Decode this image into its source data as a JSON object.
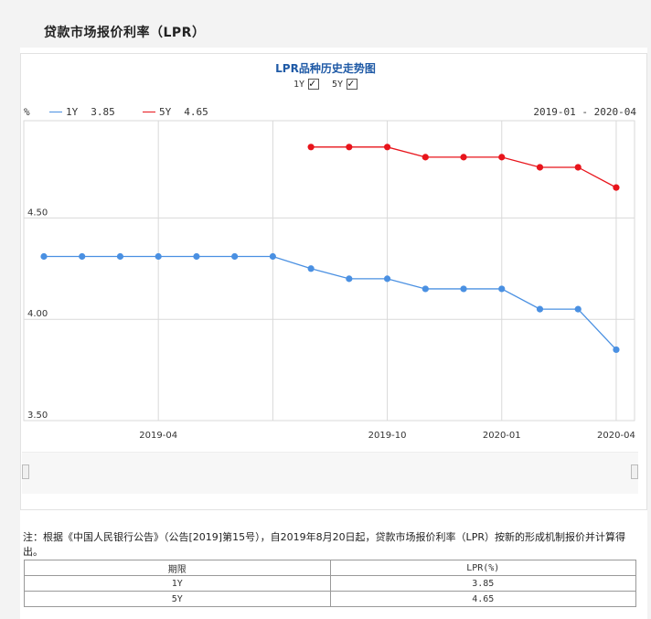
{
  "page": {
    "title": "贷款市场报价利率（LPR）"
  },
  "chart_title": "LPR品种历史走势图",
  "toggles": [
    {
      "label": "1Y",
      "checked": true
    },
    {
      "label": "5Y",
      "checked": true
    }
  ],
  "legend": {
    "unit": "%",
    "items": [
      {
        "name": "1Y",
        "value": "3.85",
        "color": "#4a90e2"
      },
      {
        "name": "5Y",
        "value": "4.65",
        "color": "#e8141b"
      }
    ],
    "date_range": "2019-01 - 2020-04"
  },
  "chart_data": {
    "type": "line",
    "y_ticks": [
      "4.50",
      "4.00",
      "3.50"
    ],
    "ylim": [
      3.5,
      4.98
    ],
    "x_ticks": [
      "2019-04",
      "2019-10",
      "2020-01",
      "2020-04"
    ],
    "x": [
      "2019-01",
      "2019-02",
      "2019-03",
      "2019-04",
      "2019-05",
      "2019-06",
      "2019-07",
      "2019-08",
      "2019-09",
      "2019-10",
      "2019-11",
      "2019-12",
      "2020-01",
      "2020-02",
      "2020-03",
      "2020-04"
    ],
    "series": [
      {
        "name": "1Y",
        "color": "#4a90e2",
        "values": [
          4.31,
          4.31,
          4.31,
          4.31,
          4.31,
          4.31,
          4.31,
          4.25,
          4.2,
          4.2,
          4.15,
          4.15,
          4.15,
          4.05,
          4.05,
          3.85
        ]
      },
      {
        "name": "5Y",
        "color": "#e8141b",
        "values": [
          null,
          null,
          null,
          null,
          null,
          null,
          null,
          4.85,
          4.85,
          4.85,
          4.8,
          4.8,
          4.8,
          4.75,
          4.75,
          4.65
        ]
      }
    ]
  },
  "note": "注：根据《中国人民银行公告》（公告[2019]第15号），自2019年8月20日起，贷款市场报价利率（LPR）按新的形成机制报价并计算得出。",
  "table": {
    "headers": [
      "期限",
      "LPR(%)"
    ],
    "rows": [
      [
        "1Y",
        "3.85"
      ],
      [
        "5Y",
        "4.65"
      ]
    ]
  }
}
